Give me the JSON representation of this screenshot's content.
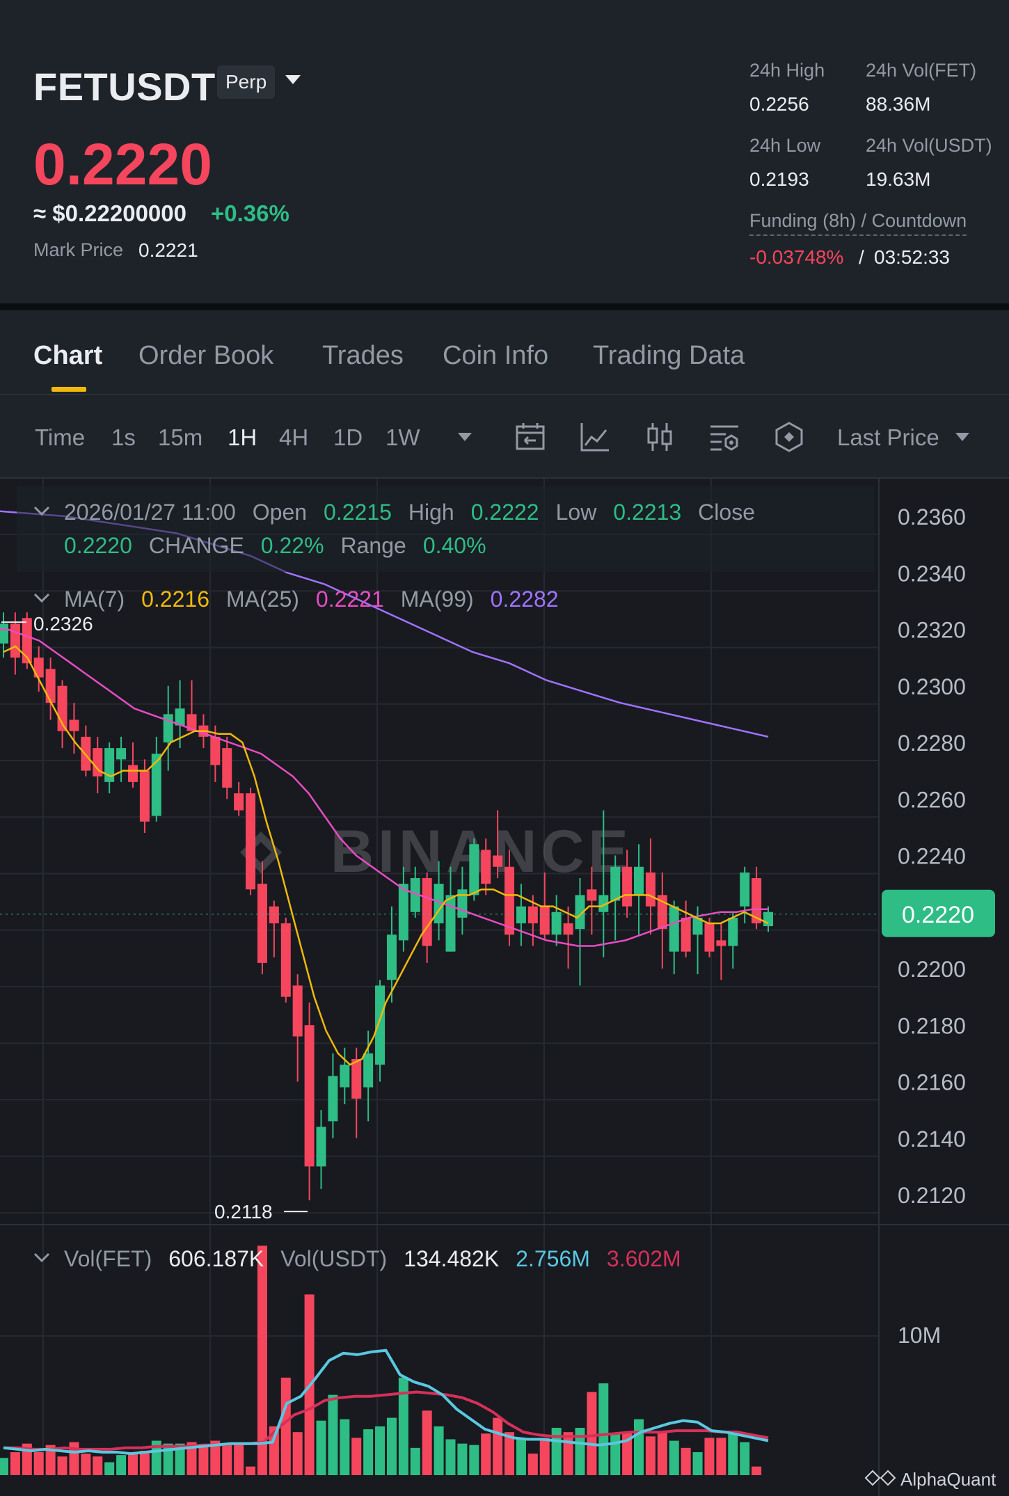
{
  "header": {
    "symbol": "FETUSDT",
    "contract_badge": "Perp",
    "last_price": "0.2220",
    "usd_price": "≈ $0.22200000",
    "change_pct": "+0.36%",
    "mark_price_label": "Mark Price",
    "mark_price": "0.2221",
    "stats": {
      "high_label": "24h High",
      "high": "0.2256",
      "vol_fet_label": "24h Vol(FET)",
      "vol_fet": "88.36M",
      "low_label": "24h Low",
      "low": "0.2193",
      "vol_usdt_label": "24h Vol(USDT)",
      "vol_usdt": "19.63M"
    },
    "funding_label": "Funding (8h) / Countdown",
    "funding_rate": "-0.03748%",
    "funding_sep": "/",
    "countdown": "03:52:33"
  },
  "tabs": [
    {
      "label": "Chart",
      "active": true
    },
    {
      "label": "Order Book",
      "active": false
    },
    {
      "label": "Trades",
      "active": false
    },
    {
      "label": "Coin Info",
      "active": false
    },
    {
      "label": "Trading Data",
      "active": false
    }
  ],
  "toolbar": {
    "intervals": [
      {
        "label": "Time",
        "active": false
      },
      {
        "label": "1s",
        "active": false
      },
      {
        "label": "15m",
        "active": false
      },
      {
        "label": "1H",
        "active": true
      },
      {
        "label": "4H",
        "active": false
      },
      {
        "label": "1D",
        "active": false
      },
      {
        "label": "1W",
        "active": false
      }
    ],
    "icons": [
      "calendar-range-icon",
      "indicators-icon",
      "candle-style-icon",
      "chart-settings-icon",
      "depth-chart-icon"
    ],
    "price_type": "Last Price"
  },
  "ohlc": {
    "time": "2026/01/27 11:00",
    "open_label": "Open",
    "open": "0.2215",
    "high_label": "High",
    "high": "0.2222",
    "low_label": "Low",
    "low": "0.2213",
    "close_label": "Close",
    "close": "0.2220",
    "change_label": "CHANGE",
    "change": "0.22%",
    "range_label": "Range",
    "range": "0.40%"
  },
  "ma": {
    "ma7_label": "MA(7)",
    "ma7": "0.2216",
    "ma25_label": "MA(25)",
    "ma25": "0.2221",
    "ma99_label": "MA(99)",
    "ma99": "0.2282"
  },
  "volume": {
    "vol_fet_label": "Vol(FET)",
    "vol_fet": "606.187K",
    "vol_usdt_label": "Vol(USDT)",
    "vol_usdt": "134.482K",
    "ma_short": "2.756M",
    "ma_long": "3.602M",
    "axis_label": "10M"
  },
  "watermark": "BINANCE",
  "footer_mark": "AlphaQuant",
  "colors": {
    "up": "#2ebd85",
    "down": "#f6465d",
    "ma7": "#f0b90b",
    "ma25": "#e84cc3",
    "ma99": "#a073ff",
    "vol_ma_short": "#5ac8e0",
    "vol_ma_long": "#d6305a",
    "accent": "#f0b90b"
  },
  "chart_data": {
    "type": "candlestick",
    "interval": "1H",
    "y_axis_ticks": [
      "0.2360",
      "0.2340",
      "0.2320",
      "0.2300",
      "0.2280",
      "0.2260",
      "0.2240",
      "0.2220",
      "0.2200",
      "0.2180",
      "0.2160",
      "0.2140",
      "0.2120"
    ],
    "ylim": [
      0.2111,
      0.2372
    ],
    "current_price_tag": "0.2220",
    "max_marker": "0.2326",
    "min_marker": "0.2118",
    "candles": [
      [
        0.2315,
        0.2326,
        0.231,
        0.2322
      ],
      [
        0.2322,
        0.2326,
        0.2304,
        0.231
      ],
      [
        0.2324,
        0.2326,
        0.2306,
        0.2308
      ],
      [
        0.231,
        0.2314,
        0.2298,
        0.2303
      ],
      [
        0.2306,
        0.231,
        0.2288,
        0.2294
      ],
      [
        0.23,
        0.2302,
        0.2278,
        0.2284
      ],
      [
        0.2288,
        0.2294,
        0.2276,
        0.2284
      ],
      [
        0.2282,
        0.2286,
        0.2268,
        0.227
      ],
      [
        0.2278,
        0.2282,
        0.2262,
        0.2268
      ],
      [
        0.2266,
        0.228,
        0.2262,
        0.2278
      ],
      [
        0.2274,
        0.2282,
        0.2266,
        0.2278
      ],
      [
        0.2272,
        0.228,
        0.2264,
        0.2266
      ],
      [
        0.227,
        0.2274,
        0.2248,
        0.2252
      ],
      [
        0.2254,
        0.2282,
        0.2252,
        0.2276
      ],
      [
        0.228,
        0.23,
        0.227,
        0.229
      ],
      [
        0.2286,
        0.2302,
        0.2278,
        0.2292
      ],
      [
        0.229,
        0.2302,
        0.2284,
        0.2284
      ],
      [
        0.2286,
        0.229,
        0.2278,
        0.2282
      ],
      [
        0.2282,
        0.2286,
        0.2266,
        0.2272
      ],
      [
        0.2278,
        0.2282,
        0.226,
        0.2264
      ],
      [
        0.2262,
        0.2266,
        0.2254,
        0.2256
      ],
      [
        0.2262,
        0.2264,
        0.2226,
        0.2228
      ],
      [
        0.223,
        0.2238,
        0.2198,
        0.2202
      ],
      [
        0.2222,
        0.2224,
        0.2204,
        0.2216
      ],
      [
        0.2216,
        0.2218,
        0.2188,
        0.219
      ],
      [
        0.2194,
        0.2198,
        0.216,
        0.2176
      ],
      [
        0.218,
        0.2188,
        0.2118,
        0.213
      ],
      [
        0.213,
        0.215,
        0.2122,
        0.2144
      ],
      [
        0.2146,
        0.217,
        0.214,
        0.2162
      ],
      [
        0.2158,
        0.2172,
        0.2152,
        0.2166
      ],
      [
        0.2168,
        0.2172,
        0.214,
        0.2154
      ],
      [
        0.2158,
        0.2178,
        0.2146,
        0.217
      ],
      [
        0.2166,
        0.2196,
        0.216,
        0.2194
      ],
      [
        0.2196,
        0.2222,
        0.2188,
        0.2212
      ],
      [
        0.221,
        0.2236,
        0.2206,
        0.223
      ],
      [
        0.222,
        0.2236,
        0.2218,
        0.2232
      ],
      [
        0.2232,
        0.2234,
        0.2202,
        0.2208
      ],
      [
        0.2216,
        0.2238,
        0.221,
        0.223
      ],
      [
        0.2206,
        0.2236,
        0.2206,
        0.2226
      ],
      [
        0.2218,
        0.2236,
        0.2212,
        0.2228
      ],
      [
        0.2226,
        0.2246,
        0.2224,
        0.2244
      ],
      [
        0.2242,
        0.2246,
        0.2226,
        0.223
      ],
      [
        0.224,
        0.2256,
        0.2232,
        0.2236
      ],
      [
        0.2236,
        0.2242,
        0.2208,
        0.2212
      ],
      [
        0.2216,
        0.223,
        0.2208,
        0.2222
      ],
      [
        0.2222,
        0.2226,
        0.2208,
        0.2216
      ],
      [
        0.2222,
        0.2234,
        0.221,
        0.2212
      ],
      [
        0.2212,
        0.2226,
        0.2208,
        0.222
      ],
      [
        0.2216,
        0.2222,
        0.22,
        0.2212
      ],
      [
        0.2214,
        0.2232,
        0.2194,
        0.2226
      ],
      [
        0.2228,
        0.2236,
        0.2212,
        0.2224
      ],
      [
        0.222,
        0.2256,
        0.2204,
        0.2226
      ],
      [
        0.2224,
        0.224,
        0.221,
        0.2236
      ],
      [
        0.2236,
        0.2242,
        0.2218,
        0.2222
      ],
      [
        0.2226,
        0.2244,
        0.2212,
        0.2236
      ],
      [
        0.2234,
        0.2246,
        0.2212,
        0.2222
      ],
      [
        0.2226,
        0.2234,
        0.22,
        0.2214
      ],
      [
        0.2206,
        0.2224,
        0.2198,
        0.2222
      ],
      [
        0.2218,
        0.2224,
        0.2204,
        0.2206
      ],
      [
        0.2212,
        0.2222,
        0.2198,
        0.2218
      ],
      [
        0.2216,
        0.2218,
        0.2204,
        0.2206
      ],
      [
        0.221,
        0.2216,
        0.2196,
        0.2208
      ],
      [
        0.2208,
        0.222,
        0.22,
        0.2218
      ],
      [
        0.2222,
        0.2236,
        0.2216,
        0.2234
      ],
      [
        0.2232,
        0.2236,
        0.2214,
        0.2216
      ],
      [
        0.2215,
        0.2222,
        0.2213,
        0.222
      ]
    ],
    "ma7_line": [
      0.2312,
      0.2314,
      0.231,
      0.2302,
      0.2294,
      0.2286,
      0.228,
      0.2275,
      0.227,
      0.2268,
      0.227,
      0.227,
      0.227,
      0.2274,
      0.228,
      0.2282,
      0.2284,
      0.2284,
      0.2283,
      0.2283,
      0.228,
      0.2268,
      0.2252,
      0.2238,
      0.2222,
      0.2206,
      0.219,
      0.2178,
      0.217,
      0.2166,
      0.2168,
      0.2176,
      0.2188,
      0.2196,
      0.2204,
      0.2212,
      0.2218,
      0.2224,
      0.2226,
      0.2226,
      0.2228,
      0.2228,
      0.2226,
      0.2226,
      0.2224,
      0.2222,
      0.2222,
      0.222,
      0.2218,
      0.2222,
      0.2222,
      0.2224,
      0.2226,
      0.2226,
      0.2226,
      0.2224,
      0.2222,
      0.222,
      0.2218,
      0.2216,
      0.2216,
      0.2218,
      0.222,
      0.2218,
      0.2216
    ],
    "ma25_line": [
      0.232,
      0.232,
      0.2318,
      0.2316,
      0.2312,
      0.2308,
      0.2304,
      0.23,
      0.2296,
      0.2292,
      0.229,
      0.2288,
      0.2286,
      0.2284,
      0.2282,
      0.228,
      0.2278,
      0.2276,
      0.2272,
      0.2268,
      0.2262,
      0.2254,
      0.2246,
      0.224,
      0.2236,
      0.2232,
      0.2228,
      0.2226,
      0.2224,
      0.2222,
      0.222,
      0.2218,
      0.2216,
      0.2214,
      0.2212,
      0.221,
      0.2209,
      0.2208,
      0.2208,
      0.2209,
      0.221,
      0.2212,
      0.2214,
      0.2216,
      0.2218,
      0.2219,
      0.222,
      0.222,
      0.2221,
      0.2221
    ],
    "ma99_line": [
      0.2362,
      0.2361,
      0.236,
      0.2358,
      0.2356,
      0.2354,
      0.235,
      0.2346,
      0.234,
      0.2336,
      0.233,
      0.2324,
      0.2318,
      0.2312,
      0.2308,
      0.2302,
      0.2298,
      0.2294,
      0.2291,
      0.2288,
      0.2285,
      0.2282
    ],
    "volume_bars_millions": [
      1.2,
      1.6,
      2.2,
      1.6,
      2.1,
      1.3,
      2.3,
      1.5,
      1.3,
      0.9,
      1.4,
      1.6,
      1.7,
      2.4,
      2.2,
      2.2,
      2.3,
      2.1,
      2.4,
      2.1,
      2.2,
      0.6,
      16.0,
      3.4,
      6.8,
      3.0,
      12.6,
      3.8,
      5.6,
      3.9,
      2.6,
      3.2,
      3.4,
      4.0,
      6.8,
      1.9,
      4.5,
      3.4,
      2.5,
      2.2,
      2.1,
      2.9,
      4.0,
      3.0,
      2.6,
      1.5,
      2.6,
      3.3,
      3.0,
      3.3,
      5.8,
      6.4,
      2.9,
      3.0,
      3.9,
      2.7,
      3.0,
      2.4,
      1.9,
      1.6,
      2.6,
      2.6,
      3.1,
      2.3,
      0.6
    ],
    "vol_ma_short_millions": [
      1.9,
      1.8,
      1.7,
      1.8,
      1.7,
      1.6,
      1.7,
      1.6,
      1.6,
      1.5,
      1.6,
      1.7,
      1.8,
      1.9,
      2.0,
      2.1,
      2.2,
      2.2,
      2.2,
      2.3,
      5.0,
      5.5,
      6.7,
      8.0,
      8.5,
      8.4,
      8.6,
      8.7,
      7.0,
      6.5,
      6.2,
      5.6,
      4.6,
      3.9,
      3.2,
      2.9,
      2.6,
      2.5,
      2.5,
      2.4,
      2.3,
      2.2,
      2.1,
      2.2,
      2.4,
      3.0,
      3.3,
      3.6,
      3.8,
      3.7,
      3.1,
      3.0,
      2.8,
      2.6,
      2.4
    ],
    "vol_ma_long_millions": [
      1.9,
      1.9,
      1.8,
      1.8,
      1.9,
      1.8,
      1.8,
      1.8,
      1.9,
      1.9,
      2.0,
      2.0,
      2.0,
      2.1,
      2.1,
      2.2,
      2.2,
      2.3,
      3.3,
      4.2,
      4.6,
      5.2,
      5.4,
      5.5,
      5.5,
      5.6,
      5.7,
      5.8,
      5.7,
      5.6,
      5.4,
      5.0,
      4.4,
      3.6,
      3.0,
      2.8,
      2.7,
      2.7,
      2.7,
      2.8,
      2.9,
      3.0,
      3.0,
      3.0,
      3.1,
      3.1,
      3.1,
      3.0,
      3.0,
      2.8,
      2.6
    ],
    "volume_ylim": [
      0,
      16.5
    ]
  }
}
